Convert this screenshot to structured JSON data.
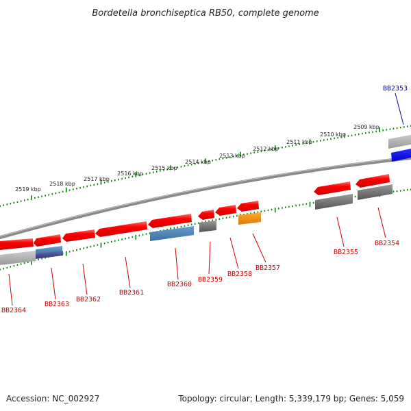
{
  "title": "Bordetella bronchiseptica RB50, complete genome",
  "footer": {
    "accession": "Accession: NC_002927",
    "summary": "Topology: circular; Length: 5,339,179 bp; Genes: 5,059"
  },
  "ruler_labels": [
    "2519 kbp",
    "2518 kbp",
    "2517 kbp",
    "2516 kbp",
    "2515 kbp",
    "2514 kbp",
    "2513 kbp",
    "2512 kbp",
    "2511 kbp",
    "2510 kbp",
    "2509 kbp"
  ],
  "genes": [
    {
      "label": "BB2364",
      "color": "#cc0000"
    },
    {
      "label": "BB2363",
      "color": "#cc0000"
    },
    {
      "label": "BB2362",
      "color": "#cc0000"
    },
    {
      "label": "BB2361",
      "color": "#cc0000"
    },
    {
      "label": "BB2360",
      "color": "#cc0000"
    },
    {
      "label": "BB2359",
      "color": "#cc0000"
    },
    {
      "label": "BB2358",
      "color": "#cc0000"
    },
    {
      "label": "BB2357",
      "color": "#cc0000"
    },
    {
      "label": "BB2355",
      "color": "#cc0000"
    },
    {
      "label": "BB2354",
      "color": "#cc0000"
    },
    {
      "label": "BB2353",
      "color": "#0000cc"
    }
  ],
  "colors": {
    "gene_red": "#ee0000",
    "gene_blue": "#0000dd",
    "backbone": "#888888",
    "tick_green": "#008000",
    "feature_gray": "#666666",
    "feature_steelblue": "#4682b4",
    "feature_orange": "#ff8c00",
    "feature_purple": "#483d8b",
    "feature_lightgray": "#aaaaaa"
  }
}
